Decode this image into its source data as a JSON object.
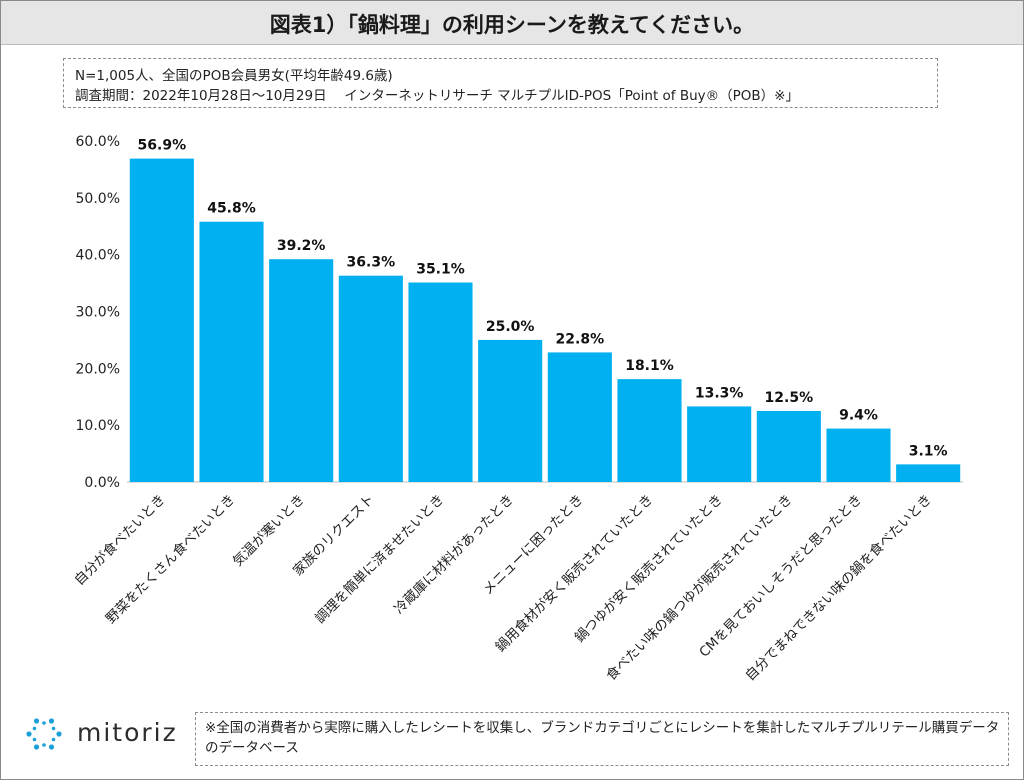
{
  "title": "図表1）「鍋料理」の利用シーンを教えてください。",
  "info": {
    "line1": "N=1,005人、全国のPOB会員男女(平均年齢49.6歳)",
    "line2": "調査期間：2022年10月28日～10月29日　 インターネットリサーチ マルチプルID-POS「Point of Buy®（POB）※」"
  },
  "chart_data": {
    "type": "bar",
    "categories": [
      "自分が食べたいとき",
      "野菜をたくさん食べたいとき",
      "気温が寒いとき",
      "家族のリクエスト",
      "調理を簡単に済ませたいとき",
      "冷蔵庫に材料があったとき",
      "メニューに困ったとき",
      "鍋用食材が安く販売されていたとき",
      "鍋つゆが安く販売されていたとき",
      "食べたい味の鍋つゆが販売されていたとき",
      "CMを見ておいしそうだと思ったとき",
      "自分でまねできない味の鍋を食べたいとき"
    ],
    "values": [
      56.9,
      45.8,
      39.2,
      36.3,
      35.1,
      25.0,
      22.8,
      18.1,
      13.3,
      12.5,
      9.4,
      3.1
    ],
    "value_labels": [
      "56.9%",
      "45.8%",
      "39.2%",
      "36.3%",
      "35.1%",
      "25.0%",
      "22.8%",
      "18.1%",
      "13.3%",
      "12.5%",
      "9.4%",
      "3.1%"
    ],
    "y_ticks": [
      "0.0%",
      "10.0%",
      "20.0%",
      "30.0%",
      "40.0%",
      "50.0%",
      "60.0%"
    ],
    "ylim": [
      0,
      60
    ],
    "grid": false,
    "bar_color": "#00b0f0"
  },
  "logo": {
    "text": "mitoriz",
    "icon": "sun-dots-icon",
    "color": "#1ba1d9"
  },
  "footnote": "※全国の消費者から実際に購入したレシートを収集し、ブランドカテゴリごとにレシートを集計したマルチプルリテール購買データのデータベース"
}
